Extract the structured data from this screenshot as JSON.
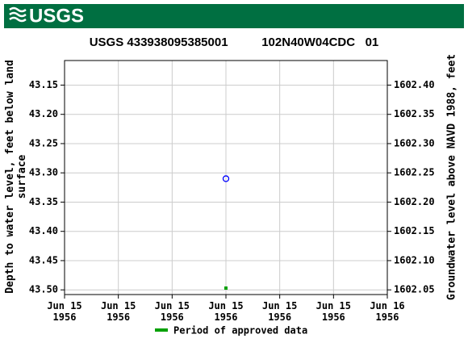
{
  "header": {
    "logo": "USGS"
  },
  "chart_data": {
    "type": "scatter",
    "title": "USGS 433938095385001          102N40W04CDC   01",
    "ylabel": "Depth to water level, feet below land surface",
    "y2label": "Groundwater level above NAVD 1988, feet",
    "xlim": [
      0,
      6
    ],
    "xticks": [
      {
        "value": 0,
        "label": "Jun 15\n1956"
      },
      {
        "value": 1,
        "label": "Jun 15\n1956"
      },
      {
        "value": 2,
        "label": "Jun 15\n1956"
      },
      {
        "value": 3,
        "label": "Jun 15\n1956"
      },
      {
        "value": 4,
        "label": "Jun 15\n1956"
      },
      {
        "value": 5,
        "label": "Jun 15\n1956"
      },
      {
        "value": 6,
        "label": "Jun 16\n1956"
      }
    ],
    "ylim": [
      43.508,
      43.108
    ],
    "yticks": [
      43.15,
      {
        "value": 43.2,
        "label": "43.20"
      },
      43.25,
      {
        "value": 43.3,
        "label": "43.30"
      },
      43.35,
      {
        "value": 43.4,
        "label": "43.40"
      },
      43.45,
      {
        "value": 43.5,
        "label": "43.50"
      }
    ],
    "y2lim": [
      1602.042,
      1602.442
    ],
    "y2ticks": [
      {
        "value": 1602.4,
        "label": "1602.40"
      },
      1602.35,
      {
        "value": 1602.3,
        "label": "1602.30"
      },
      1602.25,
      {
        "value": 1602.2,
        "label": "1602.20"
      },
      1602.15,
      {
        "value": 1602.1,
        "label": "1602.10"
      },
      1602.05
    ],
    "grid": true,
    "series": [
      {
        "x": [
          3
        ],
        "values": [
          43.31
        ],
        "color": "#0000ff"
      }
    ],
    "approved": {
      "name": "Period of approved data",
      "color": "#00a000",
      "x": [
        3
      ]
    }
  }
}
